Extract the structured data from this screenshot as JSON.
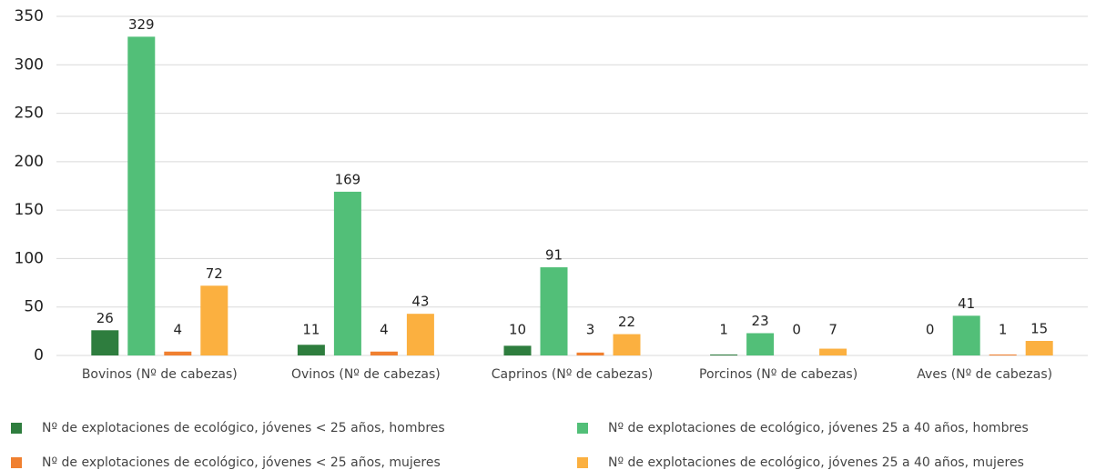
{
  "chart_data": {
    "type": "bar",
    "categories": [
      "Bovinos (Nº de cabezas)",
      "Ovinos (Nº de cabezas)",
      "Caprinos (Nº de cabezas)",
      "Porcinos (Nº de cabezas)",
      "Aves (Nº de cabezas)"
    ],
    "series": [
      {
        "name": "Nº de explotaciones de ecológico, jóvenes < 25 años, hombres",
        "color": "#2e7d3e",
        "values": [
          26,
          11,
          10,
          1,
          0
        ]
      },
      {
        "name": "Nº de explotaciones de ecológico, jóvenes 25 a 40 años, hombres",
        "color": "#52bf78",
        "values": [
          329,
          169,
          91,
          23,
          41
        ]
      },
      {
        "name": "Nº de explotaciones de ecológico, jóvenes < 25 años, mujeres",
        "color": "#f08030",
        "values": [
          4,
          4,
          3,
          0,
          1
        ]
      },
      {
        "name": "Nº de explotaciones de ecológico, jóvenes 25 a 40 años, mujeres",
        "color": "#fbb040",
        "values": [
          72,
          43,
          22,
          7,
          15
        ]
      }
    ],
    "ylim": [
      0,
      350
    ],
    "yticks": [
      0,
      50,
      100,
      150,
      200,
      250,
      300,
      350
    ],
    "grid": true,
    "legend": "bottom"
  }
}
